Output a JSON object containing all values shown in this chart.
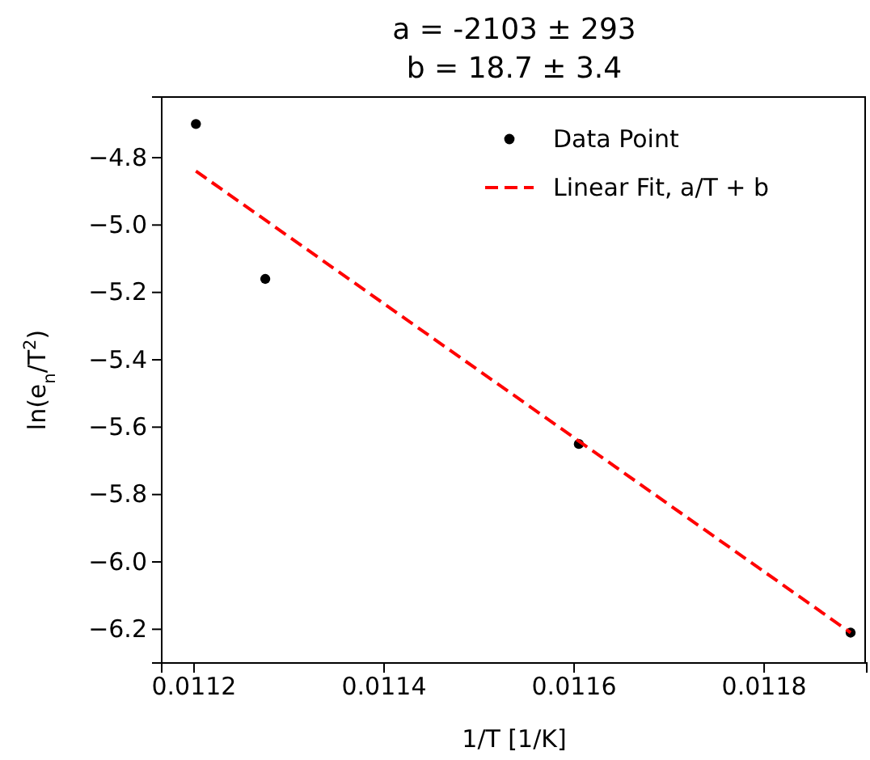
{
  "chart_data": {
    "type": "scatter",
    "title": "a = -2103 ± 293",
    "subtitle": "b = 18.7 ± 3.4",
    "xlabel": "1/T [1/K]",
    "ylabel": "ln(e$_{n}$/T$^{2}$)",
    "xlim": [
      0.011166,
      0.011908
    ],
    "ylim": [
      -6.3,
      -4.62
    ],
    "xticks": [
      0.0112,
      0.0114,
      0.0116,
      0.0118
    ],
    "yticks": [
      -6.2,
      {
        "value": -6,
        "label": "−6.0"
      },
      -5.8,
      -5.6,
      -5.4,
      -5.2,
      {
        "value": -5,
        "label": "−5.0"
      },
      -4.8
    ],
    "legend": "top right",
    "grid": false,
    "series": [
      {
        "name": "Data Point",
        "color": "#000000",
        "marker": "circle",
        "x": [
          0.011202,
          0.011275,
          0.011605,
          0.011891
        ],
        "values": [
          -4.7,
          -5.16,
          -5.65,
          -6.21
        ]
      },
      {
        "name": "Linear Fit, a/T + b",
        "type": "line",
        "color": "#ff0000",
        "line_style": "dashed",
        "marker": "none",
        "x": [
          0.011202,
          0.011891
        ],
        "values": [
          -4.84,
          -6.21
        ]
      }
    ]
  }
}
